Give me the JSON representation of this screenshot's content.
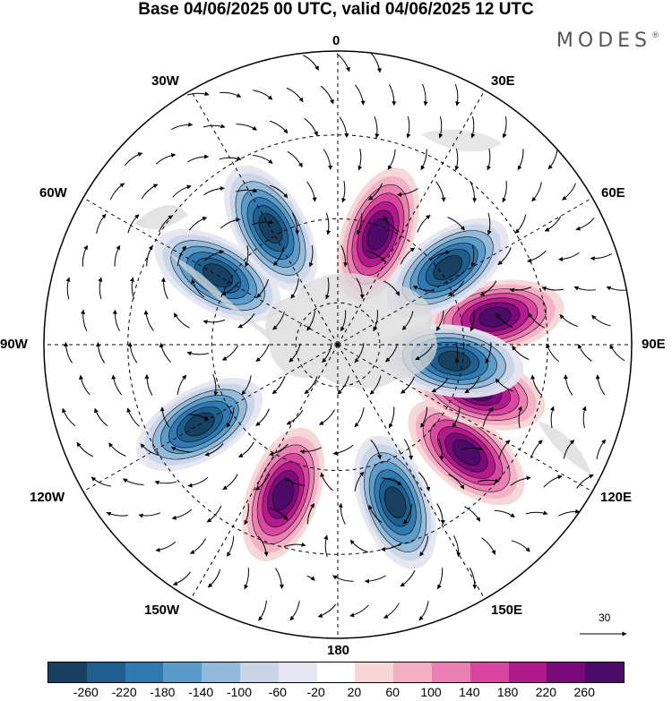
{
  "title": "Base 04/06/2025 00 UTC, valid 04/06/2025 12 UTC",
  "brand": {
    "name": "MODES",
    "mark": "®"
  },
  "lon_labels": {
    "n0": "0",
    "n30e": "30E",
    "n60e": "60E",
    "n90e": "90E",
    "n120e": "120E",
    "n150e": "150E",
    "n180": "180",
    "n150w": "150W",
    "n120w": "120W",
    "n90w": "90W",
    "n60w": "60W",
    "n30w": "30W"
  },
  "reference_vector": {
    "value": "30"
  },
  "colorbar": {
    "ticks": [
      "-260",
      "-220",
      "-180",
      "-140",
      "-100",
      "-60",
      "-20",
      "20",
      "60",
      "100",
      "140",
      "180",
      "220",
      "260"
    ],
    "colors": [
      "#173f5f",
      "#1f5e8c",
      "#2f78b0",
      "#5b9bc9",
      "#93b9da",
      "#c8d5e8",
      "#e6e6f0",
      "#ffffff",
      "#f6d6d6",
      "#f2b0c4",
      "#ea7fb1",
      "#d9449f",
      "#b0198a",
      "#7a0a7a",
      "#4b0a66"
    ]
  },
  "map": {
    "projection": "south polar stereographic",
    "features": [
      {
        "type": "high",
        "lon": 200,
        "lat": -52
      },
      {
        "type": "high",
        "lon": 80,
        "lat": -52
      },
      {
        "type": "high",
        "lon": 130,
        "lat": -50
      },
      {
        "type": "high",
        "lon": 20,
        "lat": -62
      },
      {
        "type": "high",
        "lon": 108,
        "lat": -55
      },
      {
        "type": "low",
        "lon": 240,
        "lat": -52
      },
      {
        "type": "low",
        "lon": 160,
        "lat": -50
      },
      {
        "type": "low",
        "lon": 55,
        "lat": -58
      },
      {
        "type": "low",
        "lon": 300,
        "lat": -57
      },
      {
        "type": "low",
        "lon": 330,
        "lat": -58
      },
      {
        "type": "low",
        "lon": 98,
        "lat": -62
      }
    ]
  }
}
